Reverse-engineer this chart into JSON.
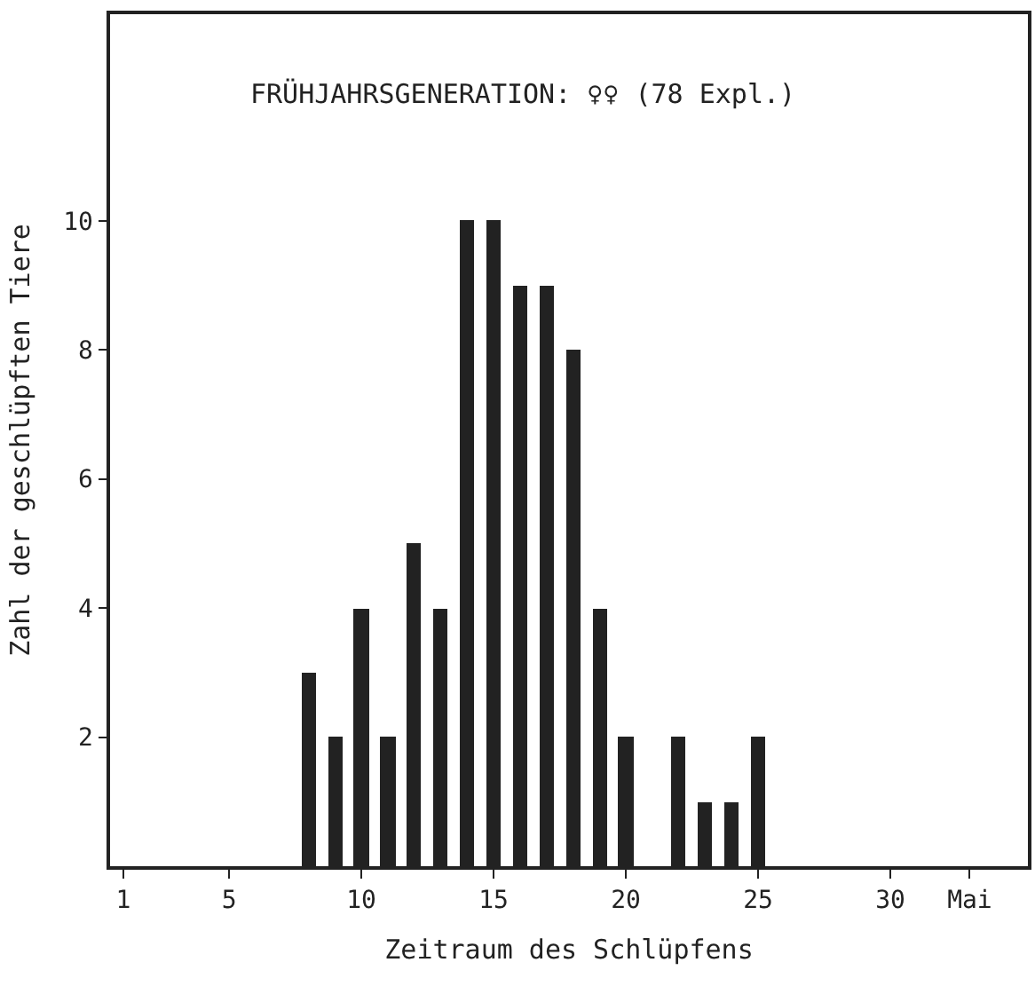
{
  "chart_data": {
    "type": "bar",
    "title": "FRÜHJAHRSGENERATION: ♀♀ (78 Expl.)",
    "xlabel": "Zeitraum des Schlüpfens",
    "ylabel": "Zahl der geschlüpften Tiere",
    "x": [
      8,
      9,
      10,
      11,
      12,
      13,
      14,
      15,
      16,
      17,
      18,
      19,
      20,
      22,
      23,
      24,
      25
    ],
    "values": [
      3,
      2,
      4,
      2,
      5,
      4,
      10,
      10,
      9,
      9,
      8,
      4,
      2,
      2,
      1,
      1,
      2
    ],
    "color": "#222222",
    "xlim": [
      0.5,
      35.2
    ],
    "xticks": [
      1,
      5,
      10,
      15,
      20,
      25,
      30,
      {
        "value": 33,
        "label": "Mai"
      }
    ],
    "ylim": [
      0,
      13.2
    ],
    "yticks": [
      2,
      4,
      6,
      8,
      10
    ]
  }
}
